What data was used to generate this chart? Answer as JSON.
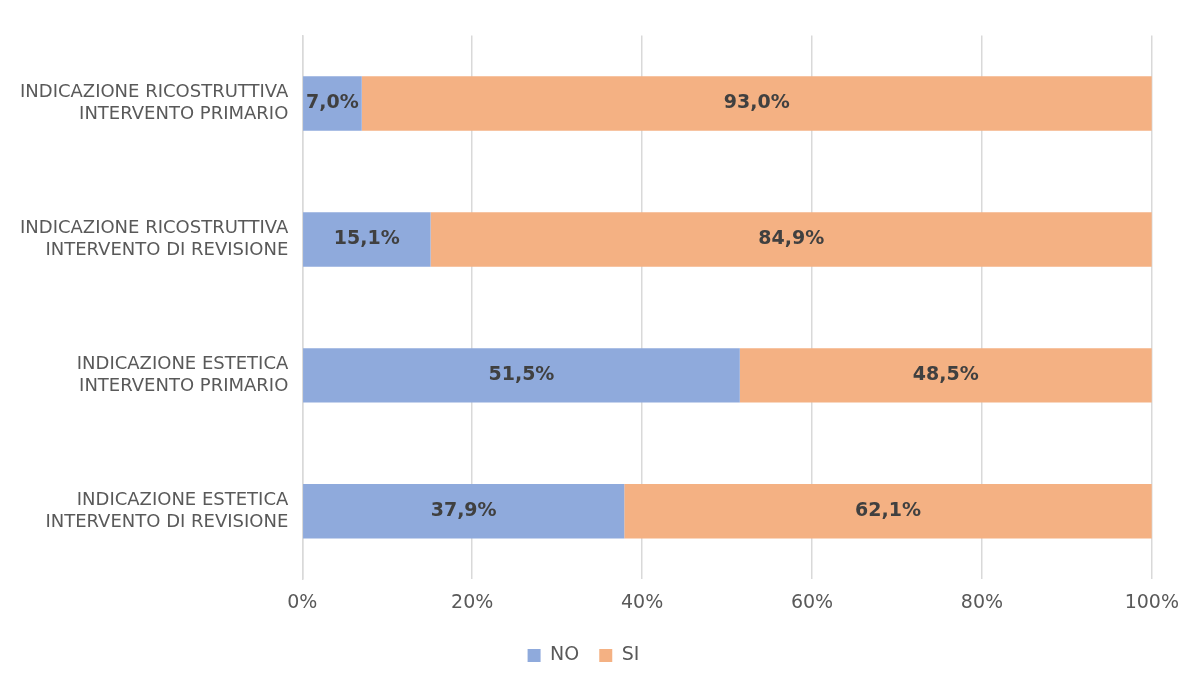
{
  "chart_data": {
    "type": "bar",
    "orientation": "horizontal",
    "stacked": true,
    "categories": [
      "INDICAZIONE RICOSTRUTTIVA\nINTERVENTO PRIMARIO",
      "INDICAZIONE RICOSTRUTTIVA\nINTERVENTO DI REVISIONE",
      "INDICAZIONE ESTETICA\nINTERVENTO PRIMARIO",
      "INDICAZIONE ESTETICA\nINTERVENTO DI REVISIONE"
    ],
    "series": [
      {
        "name": "NO",
        "color": "#8faadc",
        "values": [
          7.0,
          15.1,
          51.5,
          37.9
        ],
        "value_labels": [
          "7,0%",
          "15,1%",
          "51,5%",
          "37,9%"
        ]
      },
      {
        "name": "SI",
        "color": "#f4b183",
        "values": [
          93.0,
          84.9,
          48.5,
          62.1
        ],
        "value_labels": [
          "93,0%",
          "84,9%",
          "48,5%",
          "62,1%"
        ]
      }
    ],
    "xlim": [
      0,
      100
    ],
    "xticks": [
      {
        "value": 0,
        "label": "0%"
      },
      {
        "value": 20,
        "label": "20%"
      },
      {
        "value": 40,
        "label": "40%"
      },
      {
        "value": 60,
        "label": "60%"
      },
      {
        "value": 80,
        "label": "80%"
      },
      {
        "value": 100,
        "label": "100%"
      }
    ],
    "grid": "x",
    "legend": "bottom"
  }
}
